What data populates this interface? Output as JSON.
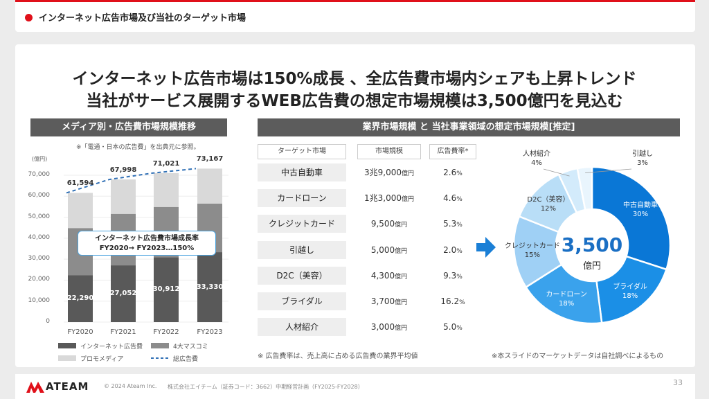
{
  "header": {
    "title": "インターネット広告市場及び当社のターゲット市場"
  },
  "headline": {
    "line1": "インターネット広告市場は150%成長 、全広告費市場内シェアも上昇トレンド",
    "line2": "当社がサービス展開するWEB広告費の想定市場規模は3,500億円を見込む"
  },
  "left_panel": {
    "title": "メディア別・広告費市場規模推移",
    "source_note": "※「電通・日本の広告費」を出典元に参照。",
    "unit": "(億円)",
    "callout_line1": "インターネット広告費市場成長率",
    "callout_line2": "FY2020→ FY2023…150%"
  },
  "right_panel": {
    "title": "業界市場規模 と 当社事業領域の想定市場規模[推定]"
  },
  "table": {
    "headers": [
      "ターゲット市場",
      "市場規模",
      "広告費率*"
    ],
    "rows": [
      {
        "name": "中古自動車",
        "size_num": "3兆9,000",
        "size_unit": "億円",
        "rate_num": "2.6",
        "rate_unit": "%"
      },
      {
        "name": "カードローン",
        "size_num": "1兆3,000",
        "size_unit": "億円",
        "rate_num": "4.6",
        "rate_unit": "%"
      },
      {
        "name": "クレジットカード",
        "size_num": "9,500",
        "size_unit": "億円",
        "rate_num": "5.3",
        "rate_unit": "%"
      },
      {
        "name": "引越し",
        "size_num": "5,000",
        "size_unit": "億円",
        "rate_num": "2.0",
        "rate_unit": "%"
      },
      {
        "name": "D2C（美容）",
        "size_num": "4,300",
        "size_unit": "億円",
        "rate_num": "9.3",
        "rate_unit": "%"
      },
      {
        "name": "ブライダル",
        "size_num": "3,700",
        "size_unit": "億円",
        "rate_num": "16.2",
        "rate_unit": "%"
      },
      {
        "name": "人材紹介",
        "size_num": "3,000",
        "size_unit": "億円",
        "rate_num": "5.0",
        "rate_unit": "%"
      }
    ],
    "footnote": "※ 広告費率は、売上高に占める広告費の業界平均値"
  },
  "donut_center": {
    "value": "3,500",
    "unit": "億円"
  },
  "right_note": "※本スライドのマーケットデータは自社調べによるもの",
  "footer": {
    "brand": "ATEAM",
    "copyright": "© 2024 Ateam Inc.",
    "company": "株式会社エイチーム（証券コード：3662）中期経営計画（FY2025-FY2028）",
    "page": "33"
  },
  "colors": {
    "accent": "#e0101a",
    "internet": "#595959",
    "mass4": "#8c8c8c",
    "promo": "#d9d9d9",
    "line": "#2f6fb5"
  },
  "chart_data": [
    {
      "type": "bar",
      "stacked": true,
      "categories": [
        "FY2020",
        "FY2021",
        "FY2022",
        "FY2023"
      ],
      "series": [
        {
          "name": "インターネット広告費",
          "values": [
            22290,
            27052,
            30912,
            33330
          ]
        },
        {
          "name": "4大マスコミ",
          "values": [
            22536,
            24538,
            23985,
            23161
          ]
        },
        {
          "name": "プロモメディア",
          "values": [
            16768,
            16408,
            16124,
            16676
          ]
        }
      ],
      "line": {
        "name": "総広告費",
        "values": [
          61594,
          67998,
          71021,
          73167
        ]
      },
      "ylim": [
        0,
        70000
      ],
      "yticks": [
        0,
        10000,
        20000,
        30000,
        40000,
        50000,
        60000,
        70000
      ],
      "ytick_labels": [
        "0",
        "10,000",
        "20,000",
        "30,000",
        "40,000",
        "50,000",
        "60,000",
        "70,000"
      ],
      "total_labels": [
        "61,594",
        "67,998",
        "71,021",
        "73,167"
      ],
      "internet_labels": [
        "22,290",
        "27,052",
        "30,912",
        "33,330"
      ],
      "legend": [
        "インターネット広告費",
        "4大マスコミ",
        "プロモメディア",
        "総広告費"
      ]
    },
    {
      "type": "pie",
      "donut": true,
      "labels": [
        "中古自動車",
        "ブライダル",
        "カードローン",
        "クレジットカード",
        "D2C（美容）",
        "人材紹介",
        "引越し"
      ],
      "values": [
        30,
        18,
        18,
        15,
        12,
        4,
        3
      ],
      "value_labels": [
        "30%",
        "18%",
        "18%",
        "15%",
        "12%",
        "4%",
        "3%"
      ],
      "colors": [
        "#0a77d6",
        "#1b8fe6",
        "#3aa2ec",
        "#9fd0f5",
        "#b9def7",
        "#d3ebfb",
        "#e9f5fd"
      ]
    }
  ]
}
